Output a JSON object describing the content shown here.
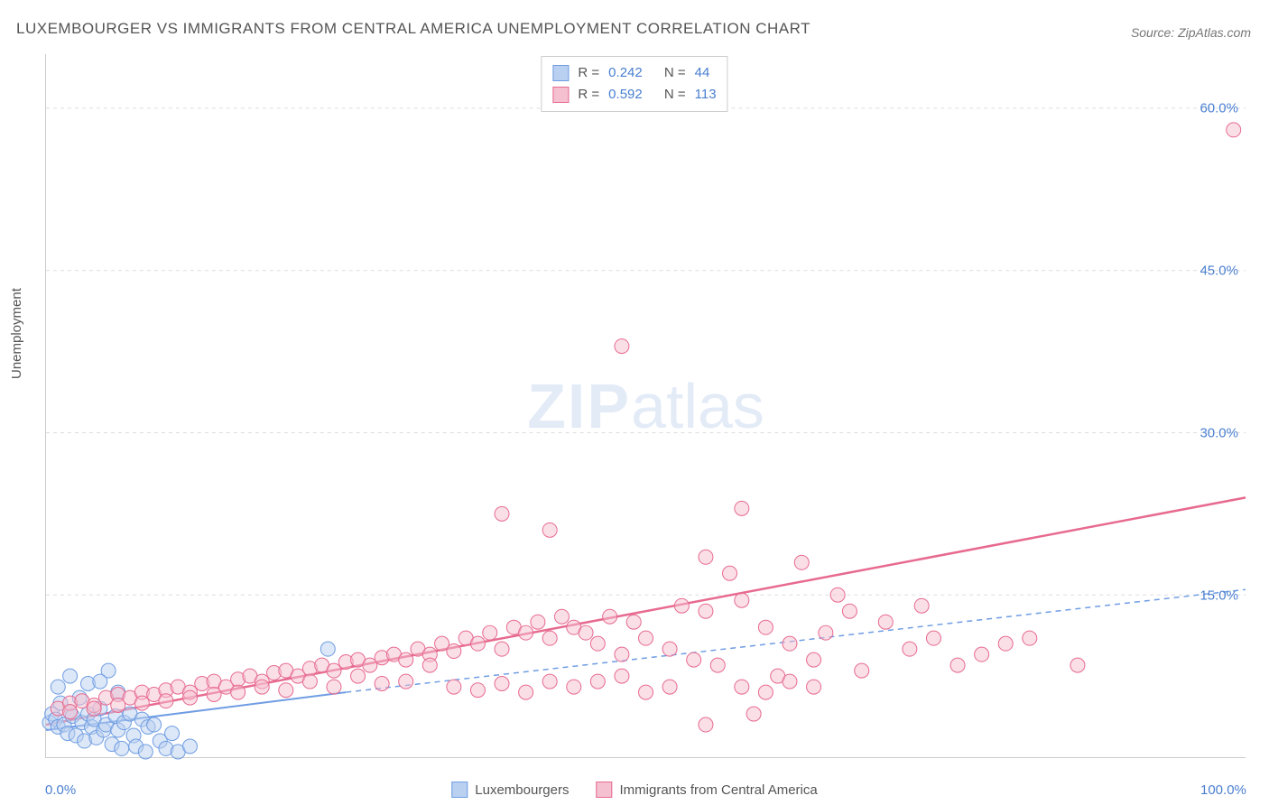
{
  "title": "LUXEMBOURGER VS IMMIGRANTS FROM CENTRAL AMERICA UNEMPLOYMENT CORRELATION CHART",
  "source": "Source: ZipAtlas.com",
  "watermark_zip": "ZIP",
  "watermark_atlas": "atlas",
  "chart": {
    "type": "scatter",
    "ylabel": "Unemployment",
    "xlim": [
      0,
      100
    ],
    "ylim": [
      0,
      65
    ],
    "background_color": "#ffffff",
    "grid_color": "#dddddd",
    "axis_color": "#cccccc",
    "tick_color": "#4a7fd0",
    "yticks": [
      {
        "v": 15,
        "label": "15.0%"
      },
      {
        "v": 30,
        "label": "30.0%"
      },
      {
        "v": 45,
        "label": "45.0%"
      },
      {
        "v": 60,
        "label": "60.0%"
      }
    ],
    "xticks": [
      {
        "v": 0,
        "label": "0.0%"
      },
      {
        "v": 100,
        "label": "100.0%"
      }
    ],
    "marker_radius": 8,
    "marker_opacity": 0.5,
    "series": [
      {
        "name": "Luxembourgers",
        "color": "#6f9de3",
        "fill": "#b9d0f0",
        "r_label": "R =",
        "r_value": "0.242",
        "n_label": "N =",
        "n_value": "44",
        "regression_solid": {
          "x1": 0,
          "y1": 2.5,
          "x2": 25,
          "y2": 6.0,
          "width": 2
        },
        "regression_dashed": {
          "x1": 25,
          "y1": 6.0,
          "x2": 100,
          "y2": 15.5,
          "dash": "6,5",
          "width": 1.5
        },
        "points": [
          [
            0.3,
            3.2
          ],
          [
            0.5,
            4.0
          ],
          [
            0.8,
            3.5
          ],
          [
            1.0,
            2.8
          ],
          [
            1.2,
            5.0
          ],
          [
            1.5,
            3.0
          ],
          [
            1.8,
            2.2
          ],
          [
            2.0,
            4.2
          ],
          [
            2.2,
            3.8
          ],
          [
            2.5,
            2.0
          ],
          [
            2.8,
            5.5
          ],
          [
            3.0,
            3.2
          ],
          [
            3.2,
            1.5
          ],
          [
            3.5,
            4.0
          ],
          [
            3.8,
            2.8
          ],
          [
            4.0,
            3.5
          ],
          [
            4.2,
            1.8
          ],
          [
            4.5,
            4.5
          ],
          [
            4.8,
            2.5
          ],
          [
            5.0,
            3.0
          ],
          [
            5.2,
            8.0
          ],
          [
            5.5,
            1.2
          ],
          [
            5.8,
            3.8
          ],
          [
            6.0,
            2.5
          ],
          [
            6.3,
            0.8
          ],
          [
            6.5,
            3.2
          ],
          [
            7.0,
            4.0
          ],
          [
            7.3,
            2.0
          ],
          [
            7.5,
            1.0
          ],
          [
            8.0,
            3.5
          ],
          [
            8.3,
            0.5
          ],
          [
            8.5,
            2.8
          ],
          [
            9.0,
            3.0
          ],
          [
            9.5,
            1.5
          ],
          [
            10.0,
            0.8
          ],
          [
            10.5,
            2.2
          ],
          [
            11.0,
            0.5
          ],
          [
            12.0,
            1.0
          ],
          [
            2.0,
            7.5
          ],
          [
            3.5,
            6.8
          ],
          [
            4.5,
            7.0
          ],
          [
            1.0,
            6.5
          ],
          [
            6.0,
            6.0
          ],
          [
            23.5,
            10.0
          ]
        ]
      },
      {
        "name": "Immigrants from Central America",
        "color": "#e76a8f",
        "fill": "#f5c0d0",
        "r_label": "R =",
        "r_value": "0.592",
        "n_label": "N =",
        "n_value": "113",
        "regression_solid": {
          "x1": 0,
          "y1": 3.0,
          "x2": 100,
          "y2": 24.0,
          "width": 2.5
        },
        "points": [
          [
            1,
            4.5
          ],
          [
            2,
            5.0
          ],
          [
            3,
            5.2
          ],
          [
            4,
            4.8
          ],
          [
            5,
            5.5
          ],
          [
            6,
            5.8
          ],
          [
            7,
            5.5
          ],
          [
            8,
            6.0
          ],
          [
            9,
            5.8
          ],
          [
            10,
            6.2
          ],
          [
            11,
            6.5
          ],
          [
            12,
            6.0
          ],
          [
            13,
            6.8
          ],
          [
            14,
            7.0
          ],
          [
            15,
            6.5
          ],
          [
            16,
            7.2
          ],
          [
            17,
            7.5
          ],
          [
            18,
            7.0
          ],
          [
            19,
            7.8
          ],
          [
            20,
            8.0
          ],
          [
            21,
            7.5
          ],
          [
            22,
            8.2
          ],
          [
            23,
            8.5
          ],
          [
            24,
            8.0
          ],
          [
            25,
            8.8
          ],
          [
            26,
            9.0
          ],
          [
            27,
            8.5
          ],
          [
            28,
            9.2
          ],
          [
            29,
            9.5
          ],
          [
            30,
            9.0
          ],
          [
            31,
            10.0
          ],
          [
            32,
            9.5
          ],
          [
            33,
            10.5
          ],
          [
            34,
            9.8
          ],
          [
            35,
            11.0
          ],
          [
            36,
            10.5
          ],
          [
            37,
            11.5
          ],
          [
            38,
            10.0
          ],
          [
            39,
            12.0
          ],
          [
            40,
            11.5
          ],
          [
            41,
            12.5
          ],
          [
            42,
            11.0
          ],
          [
            43,
            13.0
          ],
          [
            44,
            12.0
          ],
          [
            45,
            11.5
          ],
          [
            46,
            10.5
          ],
          [
            47,
            13.0
          ],
          [
            48,
            9.5
          ],
          [
            49,
            12.5
          ],
          [
            50,
            11.0
          ],
          [
            38,
            22.5
          ],
          [
            42,
            21.0
          ],
          [
            52,
            10.0
          ],
          [
            54,
            9.0
          ],
          [
            55,
            13.5
          ],
          [
            56,
            8.5
          ],
          [
            58,
            14.5
          ],
          [
            60,
            12.0
          ],
          [
            61,
            7.5
          ],
          [
            62,
            10.5
          ],
          [
            63,
            18.0
          ],
          [
            64,
            9.0
          ],
          [
            65,
            11.5
          ],
          [
            66,
            15.0
          ],
          [
            68,
            8.0
          ],
          [
            70,
            12.5
          ],
          [
            72,
            10.0
          ],
          [
            74,
            11.0
          ],
          [
            58,
            23.0
          ],
          [
            55,
            3.0
          ],
          [
            48,
            38.0
          ],
          [
            76,
            8.5
          ],
          [
            78,
            9.5
          ],
          [
            80,
            10.5
          ],
          [
            82,
            11.0
          ],
          [
            86,
            8.5
          ],
          [
            52,
            6.5
          ],
          [
            46,
            7.0
          ],
          [
            50,
            6.0
          ],
          [
            48,
            7.5
          ],
          [
            44,
            6.5
          ],
          [
            42,
            7.0
          ],
          [
            40,
            6.0
          ],
          [
            38,
            6.8
          ],
          [
            36,
            6.2
          ],
          [
            34,
            6.5
          ],
          [
            32,
            8.5
          ],
          [
            30,
            7.0
          ],
          [
            28,
            6.8
          ],
          [
            26,
            7.5
          ],
          [
            24,
            6.5
          ],
          [
            22,
            7.0
          ],
          [
            20,
            6.2
          ],
          [
            18,
            6.5
          ],
          [
            16,
            6.0
          ],
          [
            14,
            5.8
          ],
          [
            12,
            5.5
          ],
          [
            10,
            5.2
          ],
          [
            8,
            5.0
          ],
          [
            6,
            4.8
          ],
          [
            4,
            4.5
          ],
          [
            2,
            4.2
          ],
          [
            55,
            18.5
          ],
          [
            57,
            17.0
          ],
          [
            53,
            14.0
          ],
          [
            59,
            4.0
          ],
          [
            67,
            13.5
          ],
          [
            73,
            14.0
          ],
          [
            60,
            6.0
          ],
          [
            58,
            6.5
          ],
          [
            62,
            7.0
          ],
          [
            64,
            6.5
          ],
          [
            99,
            58.0
          ]
        ]
      }
    ],
    "bottom_legend": [
      {
        "swatch_fill": "#b9d0f0",
        "swatch_border": "#6f9de3",
        "label": "Luxembourgers"
      },
      {
        "swatch_fill": "#f5c0d0",
        "swatch_border": "#e76a8f",
        "label": "Immigrants from Central America"
      }
    ]
  }
}
